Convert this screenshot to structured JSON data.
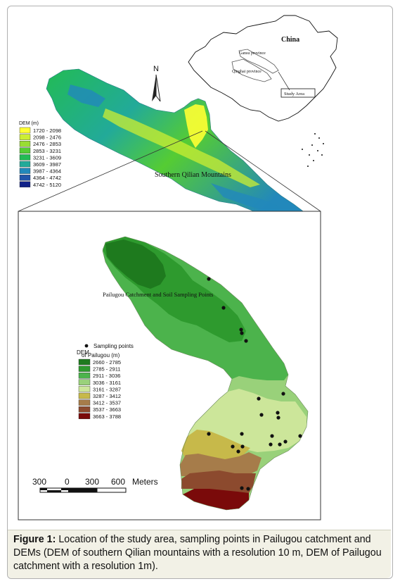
{
  "china_map": {
    "country": "China",
    "province_1": "Gansu province",
    "province_2": "Qinghai province",
    "study_area": "Study Area"
  },
  "north_arrow": {
    "label": "N"
  },
  "qilian": {
    "label": "Southern Qilian Mountains",
    "legend_title": "DEM (m)",
    "legend": [
      {
        "label": "1720 - 2098",
        "color": "#ffff33"
      },
      {
        "label": "2098 - 2476",
        "color": "#ccee33"
      },
      {
        "label": "2476 - 2853",
        "color": "#99dd33"
      },
      {
        "label": "2853 - 3231",
        "color": "#55cc33"
      },
      {
        "label": "3231 - 3609",
        "color": "#22bb55"
      },
      {
        "label": "3609 - 3987",
        "color": "#22aa99"
      },
      {
        "label": "3987 - 4364",
        "color": "#2288bb"
      },
      {
        "label": "4364 - 4742",
        "color": "#2255aa"
      },
      {
        "label": "4742 - 5120",
        "color": "#112288"
      }
    ]
  },
  "pailugou": {
    "title": "Pailugou Catchment and Soil Sampling Points",
    "points_label": "Sampling points",
    "legend_title_1": "DEM",
    "legend_title_2": "of Pailugou (m)",
    "legend": [
      {
        "label": "2660 - 2785",
        "color": "#1e7a1e"
      },
      {
        "label": "2785 - 2911",
        "color": "#2e9a2e"
      },
      {
        "label": "2911 - 3036",
        "color": "#4cb34c"
      },
      {
        "label": "3036 - 3161",
        "color": "#99d17a"
      },
      {
        "label": "3161 - 3287",
        "color": "#cce69a"
      },
      {
        "label": "3287 - 3412",
        "color": "#c7b94a"
      },
      {
        "label": "3412 - 3537",
        "color": "#a67c4a"
      },
      {
        "label": "3537 - 3663",
        "color": "#8c4a2e"
      },
      {
        "label": "3663 - 3788",
        "color": "#7a0a0a"
      }
    ],
    "scale": {
      "labels": [
        "300",
        "0",
        "300",
        "600"
      ],
      "unit": "Meters"
    }
  },
  "caption": {
    "label": "Figure 1:",
    "text": " Location of the study area, sampling points in Pailugou catchment and DEMs (DEM of southern Qilian mountains with a resolution 10 m, DEM of Pailugou catchment with a resolution 1m)."
  }
}
